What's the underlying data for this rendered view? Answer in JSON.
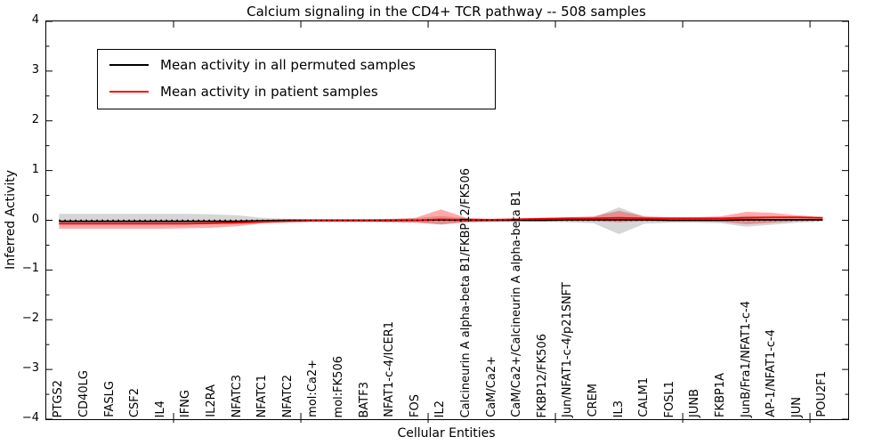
{
  "figure": {
    "title": "Calcium signaling in the CD4+ TCR pathway -- 508 samples",
    "xlabel": "Cellular Entities",
    "ylabel": "Inferred Activity"
  },
  "chart_data": {
    "type": "line",
    "title": "Calcium signaling in the CD4+ TCR pathway -- 508 samples",
    "xlabel": "Cellular Entities",
    "ylabel": "Inferred Activity",
    "grid": false,
    "legend_position": "upper left",
    "ylim": [
      -4,
      4
    ],
    "yticks": [
      4,
      3,
      2,
      1,
      0,
      -1,
      -2,
      -3,
      -4
    ],
    "ytick_labels": [
      "4",
      "3",
      "2",
      "1",
      "0",
      "−1",
      "−2",
      "−3",
      "−4"
    ],
    "xlim": [
      0,
      31.5
    ],
    "xticks_major": [
      5,
      10,
      15,
      20,
      25,
      30
    ],
    "categories": [
      "PTGS2",
      "CD40LG",
      "FASLG",
      "CSF2",
      "IL4",
      "IFNG",
      "IL2RA",
      "NFATC3",
      "NFATC1",
      "NFATC2",
      "mol:Ca2+",
      "mol:FK506",
      "BATF3",
      "NFAT1-c-4/ICER1",
      "FOS",
      "IL2",
      "Calcineurin A alpha-beta B1/FKBP12/FK506",
      "CaM/Ca2+",
      "CaM/Ca2+/Calcineurin A alpha-beta B1",
      "FKBP12/FK506",
      "Jun/NFAT1-c-4/p21SNFT",
      "CREM",
      "IL3",
      "CALM1",
      "FOSL1",
      "JUNB",
      "FKBP1A",
      "JunB/Fra1/NFAT1-c-4",
      "AP-1/NFAT1-c-4",
      "JUN",
      "POU2F1"
    ],
    "zero_line": {
      "y": 0,
      "style": "dotted",
      "color": "#000000"
    },
    "series": [
      {
        "name": "Mean activity in all permuted samples",
        "color": "#000000",
        "band_color": "rgba(0,0,0,0.16)",
        "values": [
          -0.02,
          -0.02,
          -0.02,
          -0.02,
          -0.02,
          -0.02,
          -0.02,
          -0.02,
          -0.01,
          0,
          0,
          0,
          0,
          0,
          0,
          0.01,
          0,
          0,
          0,
          0,
          0.01,
          0.01,
          0.01,
          0.01,
          0,
          0,
          0,
          0.01,
          0.01,
          0.01,
          0.01
        ],
        "band_hi": [
          0.13,
          0.13,
          0.13,
          0.13,
          0.13,
          0.13,
          0.12,
          0.1,
          0.05,
          0.03,
          0.02,
          0.02,
          0.02,
          0.03,
          0.04,
          0.09,
          0.04,
          0.02,
          0.02,
          0.03,
          0.04,
          0.06,
          0.26,
          0.07,
          0.04,
          0.04,
          0.05,
          0.09,
          0.07,
          0.05,
          0.03
        ],
        "band_lo": [
          -0.06,
          -0.06,
          -0.06,
          -0.06,
          -0.06,
          -0.06,
          -0.06,
          -0.05,
          -0.03,
          -0.02,
          -0.02,
          -0.02,
          -0.02,
          -0.03,
          -0.04,
          -0.09,
          -0.04,
          -0.02,
          -0.02,
          -0.03,
          -0.04,
          -0.06,
          -0.28,
          -0.07,
          -0.05,
          -0.05,
          -0.06,
          -0.13,
          -0.09,
          -0.05,
          -0.03
        ]
      },
      {
        "name": "Mean activity in patient samples",
        "color": "#ff0000",
        "band_color": "rgba(255,0,0,0.33)",
        "values": [
          -0.07,
          -0.07,
          -0.07,
          -0.07,
          -0.07,
          -0.07,
          -0.06,
          -0.05,
          -0.03,
          -0.02,
          -0.01,
          -0.01,
          -0.01,
          -0.01,
          0,
          0.02,
          0.01,
          0.01,
          0.02,
          0.03,
          0.04,
          0.04,
          0.05,
          0.04,
          0.04,
          0.04,
          0.04,
          0.05,
          0.06,
          0.06,
          0.05
        ],
        "band_hi": [
          -0.03,
          -0.03,
          -0.03,
          -0.03,
          -0.03,
          -0.03,
          -0.03,
          -0.02,
          -0.01,
          0,
          0,
          0,
          0.01,
          0.02,
          0.05,
          0.22,
          0.05,
          0.03,
          0.04,
          0.05,
          0.06,
          0.08,
          0.19,
          0.08,
          0.06,
          0.06,
          0.08,
          0.17,
          0.15,
          0.1,
          0.06
        ],
        "band_lo": [
          -0.17,
          -0.17,
          -0.17,
          -0.17,
          -0.17,
          -0.16,
          -0.15,
          -0.12,
          -0.06,
          -0.04,
          -0.03,
          -0.03,
          -0.03,
          -0.04,
          -0.05,
          -0.08,
          -0.04,
          -0.03,
          -0.02,
          -0.02,
          -0.02,
          -0.02,
          -0.04,
          -0.02,
          -0.02,
          -0.02,
          -0.03,
          -0.08,
          -0.05,
          -0.02,
          -0.01
        ]
      }
    ]
  }
}
